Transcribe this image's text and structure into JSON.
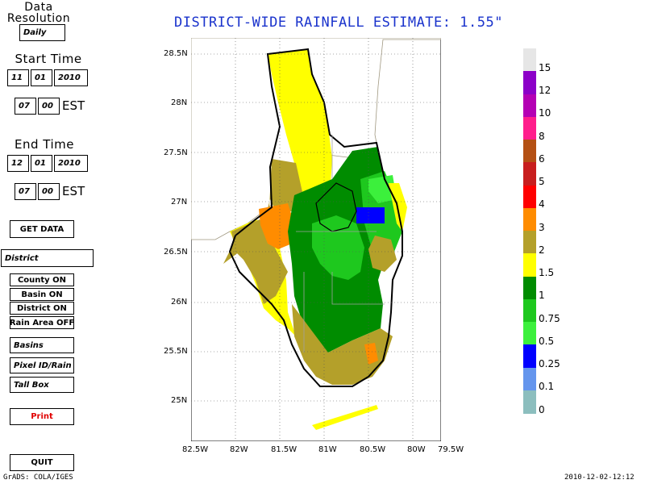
{
  "title": "DISTRICT-WIDE RAINFALL ESTIMATE: 1.55\"",
  "controls": {
    "data_resolution_label": [
      "Data",
      "Resolution"
    ],
    "resolution_value": "Daily",
    "start_label": "Start Time",
    "start_month": "11",
    "start_day": "01",
    "start_year": "2010",
    "start_hour": "07",
    "start_min": "00",
    "start_tz": "EST",
    "end_label": "End Time",
    "end_month": "12",
    "end_day": "01",
    "end_year": "2010",
    "end_hour": "07",
    "end_min": "00",
    "end_tz": "EST",
    "get_data": "GET DATA",
    "area_select": "District",
    "county": "County ON",
    "basin": "Basin ON",
    "district": "District ON",
    "rain_area": "Rain Area OFF",
    "basins": "Basins",
    "pixel_id": "Pixel ID/Rain",
    "tall_box": "Tall Box",
    "print": "Print",
    "quit": "QUIT"
  },
  "map": {
    "lat_ticks": [
      "28.5N",
      "28N",
      "27.5N",
      "27N",
      "26.5N",
      "26N",
      "25.5N",
      "25N"
    ],
    "lon_ticks": [
      "82.5W",
      "82W",
      "81.5W",
      "81W",
      "80.5W",
      "80W",
      "79.5W"
    ],
    "colors": {
      "lt_yellow": "#ffff00",
      "olive": "#b4a02a",
      "orange": "#ff8c00",
      "dk_green": "#008c00",
      "green": "#1ec81e",
      "lt_green": "#3cf03c",
      "blue": "#0000ff",
      "land_white": "#ffffff"
    }
  },
  "legend": {
    "labels": [
      "15",
      "12",
      "10",
      "8",
      "6",
      "5",
      "4",
      "3",
      "2",
      "1.5",
      "1",
      "0.75",
      "0.5",
      "0.25",
      "0.1",
      "0"
    ],
    "colors": [
      "#e6e6e6",
      "#8c00c8",
      "#b400b4",
      "#ff1e8c",
      "#b45014",
      "#c81e1e",
      "#ff0000",
      "#ff8c00",
      "#b4a02a",
      "#ffff00",
      "#008c00",
      "#1ec81e",
      "#3cf03c",
      "#0000ff",
      "#6495ed",
      "#8cbebe"
    ]
  },
  "footer": {
    "left": "GrADS: COLA/IGES",
    "right": "2010-12-02-12:12"
  }
}
